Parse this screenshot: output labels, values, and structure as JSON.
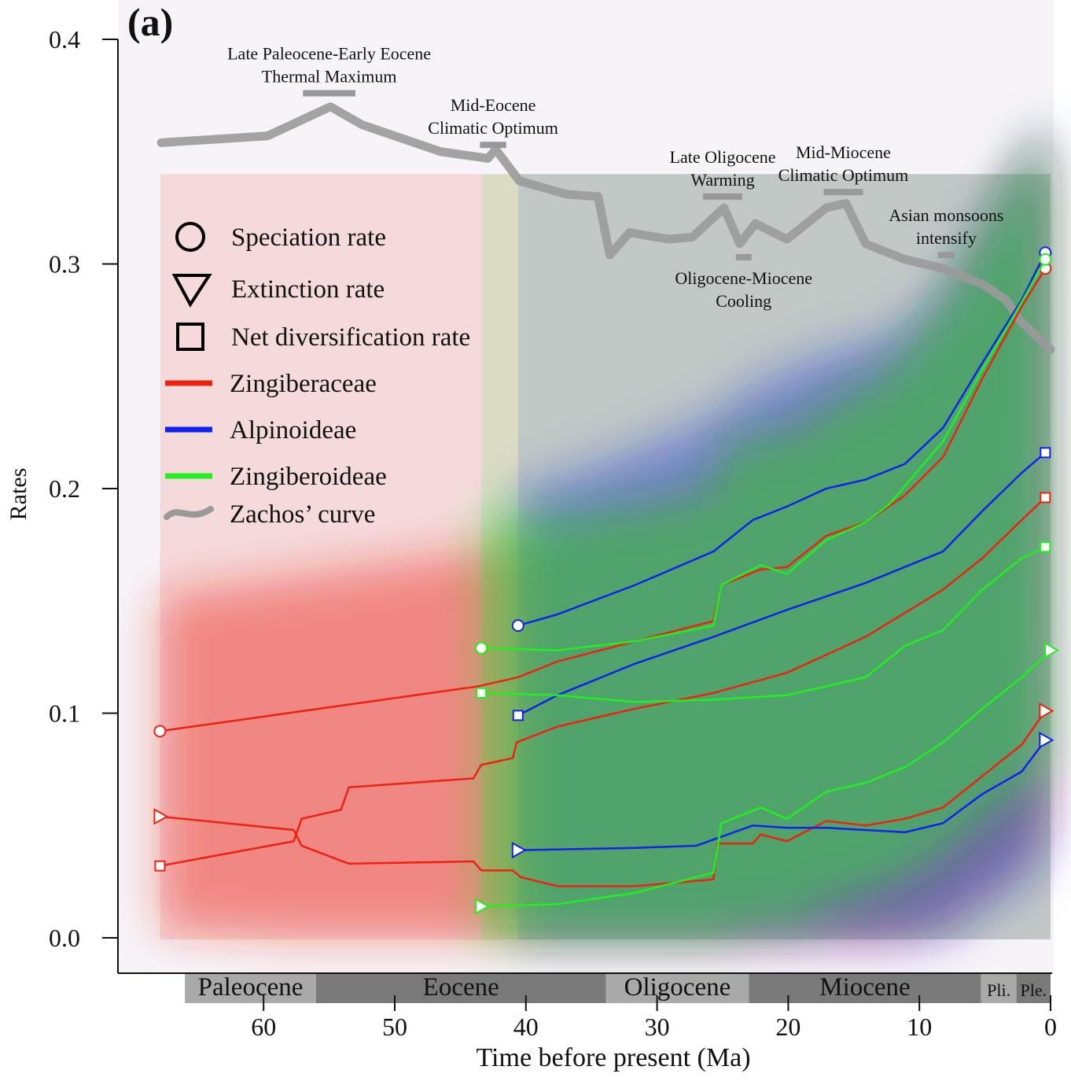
{
  "chart_data": {
    "type": "line",
    "panel_label": "(a)",
    "xlabel": "Time before present (Ma)",
    "ylabel": "Rates",
    "xlim": [
      68.5,
      0
    ],
    "ylim": [
      -0.015,
      0.41
    ],
    "xticks": [
      60,
      50,
      40,
      30,
      20,
      10,
      0
    ],
    "yticks": [
      0.0,
      0.1,
      0.2,
      0.3,
      0.4
    ],
    "ytick_labels": [
      "0.0",
      "0.1",
      "0.2",
      "0.3",
      "0.4"
    ],
    "legend": {
      "placement": "upper-left",
      "markers": [
        {
          "shape": "circle",
          "label": "Speciation rate"
        },
        {
          "shape": "triangle",
          "label": "Extinction rate"
        },
        {
          "shape": "square",
          "label": "Net diversification rate"
        }
      ],
      "lines": [
        {
          "label": "Zingiberaceae",
          "color": "#ee2211"
        },
        {
          "label": "Alpinoideae",
          "color": "#1122ee"
        },
        {
          "label": "Zingiberoideae",
          "color": "#22ee22"
        },
        {
          "label": "Zachos’ curve",
          "color": "#999999"
        }
      ]
    },
    "series": [
      {
        "name": "Zingiberaceae",
        "color": "#ee2211",
        "start": 67.9,
        "speciation": [
          [
            67.9,
            0.092
          ],
          [
            43.6,
            0.112
          ],
          [
            40.6,
            0.116
          ],
          [
            37.6,
            0.123
          ],
          [
            31.7,
            0.132
          ],
          [
            25.7,
            0.141
          ],
          [
            25.1,
            0.157
          ],
          [
            22.1,
            0.164
          ],
          [
            20.1,
            0.165
          ],
          [
            17.1,
            0.179
          ],
          [
            14.1,
            0.185
          ],
          [
            11.1,
            0.197
          ],
          [
            8.2,
            0.214
          ],
          [
            5.2,
            0.249
          ],
          [
            2.2,
            0.281
          ],
          [
            0.4,
            0.298
          ]
        ],
        "extinction": [
          [
            67.9,
            0.054
          ],
          [
            57.7,
            0.048
          ],
          [
            57.1,
            0.041
          ],
          [
            53.5,
            0.033
          ],
          [
            44.0,
            0.034
          ],
          [
            43.4,
            0.03
          ],
          [
            41.0,
            0.03
          ],
          [
            40.4,
            0.027
          ],
          [
            37.6,
            0.023
          ],
          [
            31.7,
            0.023
          ],
          [
            25.7,
            0.026
          ],
          [
            25.4,
            0.042
          ],
          [
            22.7,
            0.042
          ],
          [
            22.1,
            0.046
          ],
          [
            20.1,
            0.043
          ],
          [
            17.1,
            0.052
          ],
          [
            14.1,
            0.05
          ],
          [
            11.1,
            0.053
          ],
          [
            8.2,
            0.058
          ],
          [
            5.2,
            0.072
          ],
          [
            2.2,
            0.086
          ],
          [
            0.4,
            0.101
          ]
        ],
        "net": [
          [
            67.9,
            0.032
          ],
          [
            57.7,
            0.043
          ],
          [
            57.1,
            0.053
          ],
          [
            54.1,
            0.057
          ],
          [
            53.5,
            0.067
          ],
          [
            44.0,
            0.071
          ],
          [
            43.4,
            0.077
          ],
          [
            41.0,
            0.08
          ],
          [
            40.7,
            0.087
          ],
          [
            37.6,
            0.094
          ],
          [
            31.7,
            0.102
          ],
          [
            25.7,
            0.109
          ],
          [
            20.1,
            0.118
          ],
          [
            14.1,
            0.134
          ],
          [
            8.2,
            0.155
          ],
          [
            5.2,
            0.169
          ],
          [
            2.2,
            0.186
          ],
          [
            0.4,
            0.196
          ]
        ]
      },
      {
        "name": "Alpinoideae",
        "color": "#1122ee",
        "start": 40.6,
        "speciation": [
          [
            40.6,
            0.139
          ],
          [
            37.6,
            0.144
          ],
          [
            31.7,
            0.157
          ],
          [
            25.7,
            0.172
          ],
          [
            22.7,
            0.186
          ],
          [
            20.1,
            0.192
          ],
          [
            17.1,
            0.2
          ],
          [
            14.1,
            0.204
          ],
          [
            11.1,
            0.211
          ],
          [
            8.2,
            0.227
          ],
          [
            5.2,
            0.256
          ],
          [
            2.2,
            0.284
          ],
          [
            0.4,
            0.305
          ]
        ],
        "extinction": [
          [
            40.6,
            0.039
          ],
          [
            31.7,
            0.04
          ],
          [
            27.0,
            0.041
          ],
          [
            22.7,
            0.05
          ],
          [
            20.1,
            0.049
          ],
          [
            17.1,
            0.049
          ],
          [
            14.1,
            0.048
          ],
          [
            11.1,
            0.047
          ],
          [
            8.2,
            0.051
          ],
          [
            5.2,
            0.064
          ],
          [
            2.2,
            0.074
          ],
          [
            0.4,
            0.088
          ]
        ],
        "net": [
          [
            40.6,
            0.099
          ],
          [
            37.6,
            0.108
          ],
          [
            31.7,
            0.122
          ],
          [
            25.7,
            0.134
          ],
          [
            20.1,
            0.146
          ],
          [
            14.1,
            0.158
          ],
          [
            8.2,
            0.172
          ],
          [
            5.2,
            0.19
          ],
          [
            2.2,
            0.207
          ],
          [
            0.4,
            0.216
          ]
        ]
      },
      {
        "name": "Zingiberoideae",
        "color": "#22ee22",
        "start": 43.4,
        "speciation": [
          [
            43.4,
            0.129
          ],
          [
            37.6,
            0.128
          ],
          [
            31.7,
            0.132
          ],
          [
            25.7,
            0.139
          ],
          [
            25.1,
            0.157
          ],
          [
            22.1,
            0.166
          ],
          [
            20.1,
            0.162
          ],
          [
            17.1,
            0.177
          ],
          [
            14.1,
            0.185
          ],
          [
            12.3,
            0.193
          ],
          [
            8.2,
            0.221
          ],
          [
            5.2,
            0.253
          ],
          [
            2.2,
            0.283
          ],
          [
            0.4,
            0.302
          ]
        ],
        "extinction": [
          [
            43.4,
            0.014
          ],
          [
            37.6,
            0.015
          ],
          [
            31.7,
            0.02
          ],
          [
            25.7,
            0.029
          ],
          [
            25.1,
            0.051
          ],
          [
            22.1,
            0.058
          ],
          [
            20.1,
            0.053
          ],
          [
            17.1,
            0.065
          ],
          [
            14.1,
            0.069
          ],
          [
            11.1,
            0.076
          ],
          [
            8.2,
            0.087
          ],
          [
            5.2,
            0.102
          ],
          [
            2.2,
            0.116
          ],
          [
            0.0,
            0.128
          ]
        ],
        "net": [
          [
            43.4,
            0.109
          ],
          [
            37.6,
            0.108
          ],
          [
            31.7,
            0.105
          ],
          [
            25.7,
            0.106
          ],
          [
            20.1,
            0.108
          ],
          [
            14.1,
            0.116
          ],
          [
            11.1,
            0.13
          ],
          [
            8.2,
            0.137
          ],
          [
            5.2,
            0.155
          ],
          [
            2.2,
            0.169
          ],
          [
            0.4,
            0.174
          ]
        ]
      }
    ],
    "zachos": [
      [
        67.8,
        0.354
      ],
      [
        59.7,
        0.357
      ],
      [
        54.9,
        0.37
      ],
      [
        52.5,
        0.362
      ],
      [
        46.5,
        0.35
      ],
      [
        42.9,
        0.347
      ],
      [
        42.3,
        0.351
      ],
      [
        40.5,
        0.337
      ],
      [
        36.9,
        0.331
      ],
      [
        34.5,
        0.33
      ],
      [
        33.6,
        0.304
      ],
      [
        32.1,
        0.314
      ],
      [
        29.1,
        0.311
      ],
      [
        27.3,
        0.312
      ],
      [
        24.9,
        0.325
      ],
      [
        23.7,
        0.309
      ],
      [
        22.5,
        0.318
      ],
      [
        20.1,
        0.311
      ],
      [
        17.1,
        0.325
      ],
      [
        15.6,
        0.327
      ],
      [
        14.1,
        0.309
      ],
      [
        11.1,
        0.302
      ],
      [
        8.2,
        0.298
      ],
      [
        5.2,
        0.291
      ],
      [
        3.4,
        0.284
      ],
      [
        2.2,
        0.274
      ],
      [
        0.0,
        0.262
      ]
    ],
    "annotations": [
      {
        "lines": [
          "Late Paleocene-Early Eocene",
          "Thermal Maximum"
        ],
        "range": [
          57,
          53
        ],
        "level": 0.376,
        "side": "above"
      },
      {
        "lines": [
          "Mid-Eocene",
          "Climatic Optimum"
        ],
        "range": [
          43.5,
          41.5
        ],
        "level": 0.353,
        "side": "above"
      },
      {
        "lines": [
          "Late Oligocene",
          "Warming"
        ],
        "range": [
          26.5,
          23.5
        ],
        "level": 0.33,
        "side": "above"
      },
      {
        "lines": [
          "Mid-Miocene",
          "Climatic Optimum"
        ],
        "range": [
          17.3,
          14.3
        ],
        "level": 0.332,
        "side": "above"
      },
      {
        "lines": [
          "Oligocene-Miocene",
          "Cooling"
        ],
        "range": [
          24,
          22.8
        ],
        "level": 0.303,
        "side": "below"
      },
      {
        "lines": [
          "Asian monsoons",
          "intensify"
        ],
        "range": [
          8.6,
          7.3
        ],
        "level": 0.304,
        "side": "above"
      }
    ],
    "epochs": [
      {
        "name": "Paleocene",
        "start": 66,
        "end": 56,
        "color": "#a9a9a9"
      },
      {
        "name": "Eocene",
        "start": 56,
        "end": 33.9,
        "color": "#7a7a7a"
      },
      {
        "name": "Oligocene",
        "start": 33.9,
        "end": 23,
        "color": "#a9a9a9"
      },
      {
        "name": "Miocene",
        "start": 23,
        "end": 5.3,
        "color": "#7a7a7a"
      },
      {
        "name": "Pli.",
        "start": 5.3,
        "end": 2.6,
        "color": "#a9a9a9"
      },
      {
        "name": "Ple.",
        "start": 2.6,
        "end": 0,
        "color": "#7a7a7a"
      }
    ]
  }
}
